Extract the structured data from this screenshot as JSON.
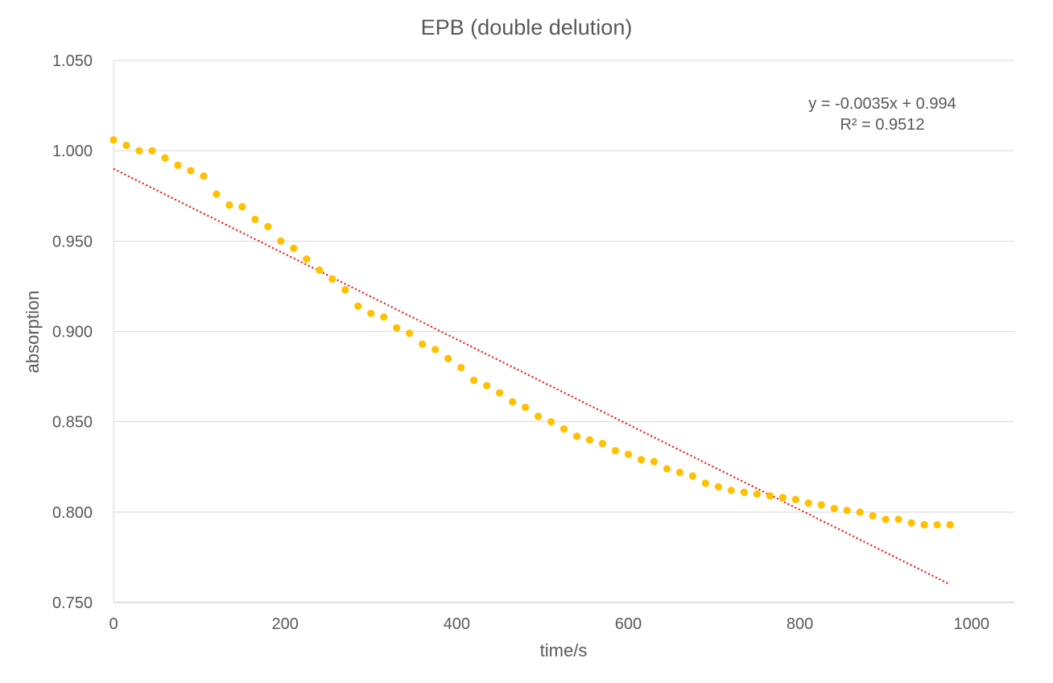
{
  "chart_data": {
    "type": "scatter",
    "title": "EPB (double delution)",
    "xlabel": "time/s",
    "ylabel": "absorption",
    "xlim": [
      0,
      1050
    ],
    "ylim": [
      0.75,
      1.05
    ],
    "x_ticks": [
      "0",
      "200",
      "400",
      "600",
      "800",
      "1000"
    ],
    "y_ticks": [
      "0.750",
      "0.800",
      "0.850",
      "0.900",
      "0.950",
      "1.000",
      "1.050"
    ],
    "grid": "horizontal",
    "legend": "none",
    "series": [
      {
        "marker": "circle",
        "color": "#FFC000",
        "x": [
          0,
          15,
          30,
          45,
          60,
          75,
          90,
          105,
          120,
          135,
          150,
          165,
          180,
          195,
          210,
          225,
          240,
          255,
          270,
          285,
          300,
          315,
          330,
          345,
          360,
          375,
          390,
          405,
          420,
          435,
          450,
          465,
          480,
          495,
          510,
          525,
          540,
          555,
          570,
          585,
          600,
          615,
          630,
          645,
          660,
          675,
          690,
          705,
          720,
          735,
          750,
          765,
          780,
          795,
          810,
          825,
          840,
          855,
          870,
          885,
          900,
          915,
          930,
          945,
          960,
          975
        ],
        "y": [
          1.006,
          1.003,
          1.0,
          1.0,
          0.996,
          0.992,
          0.989,
          0.986,
          0.976,
          0.97,
          0.969,
          0.962,
          0.958,
          0.95,
          0.946,
          0.94,
          0.934,
          0.929,
          0.923,
          0.914,
          0.91,
          0.908,
          0.902,
          0.899,
          0.893,
          0.89,
          0.885,
          0.88,
          0.873,
          0.87,
          0.866,
          0.861,
          0.858,
          0.853,
          0.85,
          0.846,
          0.842,
          0.84,
          0.838,
          0.834,
          0.832,
          0.829,
          0.828,
          0.824,
          0.822,
          0.82,
          0.816,
          0.814,
          0.812,
          0.811,
          0.81,
          0.809,
          0.808,
          0.807,
          0.805,
          0.804,
          0.802,
          0.801,
          0.8,
          0.798,
          0.796,
          0.796,
          0.794,
          0.793,
          0.793,
          0.793
        ]
      }
    ],
    "trendline": {
      "type": "linear",
      "style": "dotted",
      "color": "#FF0000",
      "x": [
        0,
        975
      ],
      "y": [
        0.99,
        0.76
      ],
      "equation": "y = -0.0035x + 0.994",
      "r_squared": "R² = 0.9512"
    }
  }
}
